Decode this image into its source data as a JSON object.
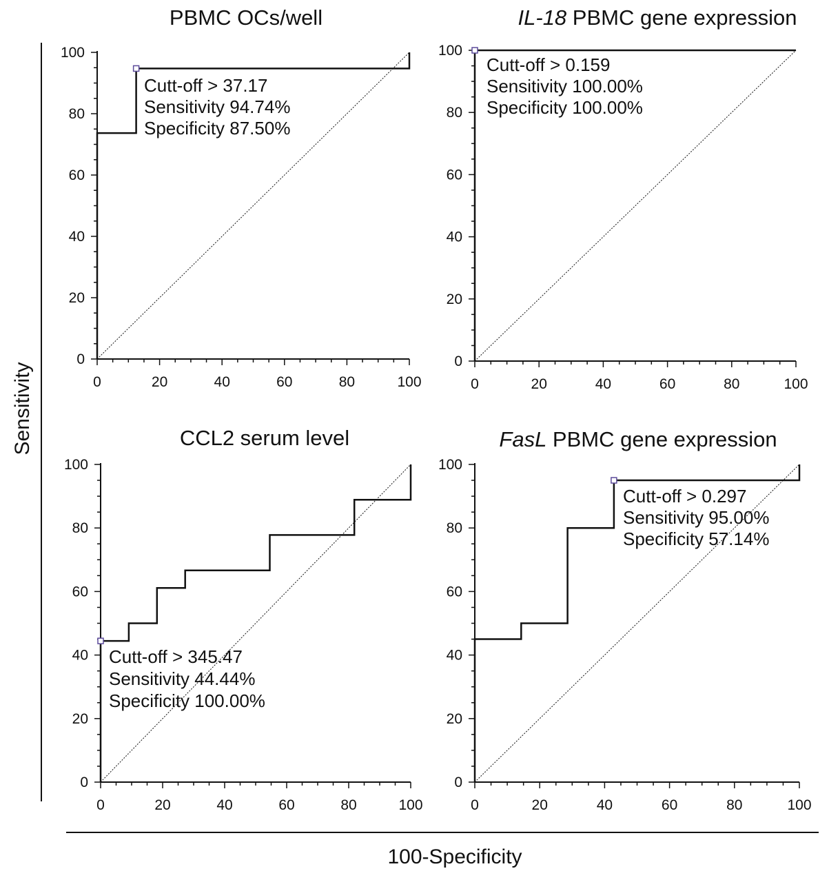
{
  "figure": {
    "ylabel": "Sensitivity",
    "xlabel": "100-Specificity"
  },
  "chart_data": [
    {
      "type": "line",
      "title": "PBMC OCs/well",
      "title_italic_prefix": "",
      "title_rest": "PBMC OCs/well",
      "xlim": [
        0,
        100
      ],
      "ylim": [
        0,
        100
      ],
      "x_ticks": [
        0,
        20,
        40,
        60,
        80,
        100
      ],
      "y_ticks": [
        0,
        20,
        40,
        60,
        80,
        100
      ],
      "x_minor_step": 5,
      "y_minor_step": 5,
      "grid": false,
      "series": [
        {
          "kind": "roc",
          "x": [
            0,
            0,
            12.5,
            12.5,
            100,
            100
          ],
          "y": [
            0,
            73.68,
            73.68,
            94.74,
            94.74,
            100
          ]
        },
        {
          "kind": "reference",
          "x": [
            0,
            100
          ],
          "y": [
            0,
            100
          ]
        }
      ],
      "cutoff_point": {
        "x": 12.5,
        "y": 94.74
      },
      "annotation": [
        "Cutt-off > 37.17",
        "Sensitivity 94.74%",
        "Specificity 87.50%"
      ]
    },
    {
      "type": "line",
      "title": "IL-18 PBMC gene expression",
      "title_italic_prefix": "IL-18",
      "title_rest": " PBMC gene expression",
      "xlim": [
        0,
        100
      ],
      "ylim": [
        0,
        100
      ],
      "x_ticks": [
        0,
        20,
        40,
        60,
        80,
        100
      ],
      "y_ticks": [
        0,
        20,
        40,
        60,
        80,
        100
      ],
      "x_minor_step": 5,
      "y_minor_step": 5,
      "grid": false,
      "series": [
        {
          "kind": "roc",
          "x": [
            0,
            0,
            100
          ],
          "y": [
            0,
            100,
            100
          ]
        },
        {
          "kind": "reference",
          "x": [
            0,
            100
          ],
          "y": [
            0,
            100
          ]
        }
      ],
      "cutoff_point": {
        "x": 0,
        "y": 100
      },
      "annotation": [
        "Cutt-off > 0.159",
        "Sensitivity 100.00%",
        "Specificity 100.00%"
      ]
    },
    {
      "type": "line",
      "title": "CCL2 serum level",
      "title_italic_prefix": "",
      "title_rest": "CCL2 serum level",
      "xlim": [
        0,
        100
      ],
      "ylim": [
        0,
        100
      ],
      "x_ticks": [
        0,
        20,
        40,
        60,
        80,
        100
      ],
      "y_ticks": [
        0,
        20,
        40,
        60,
        80,
        100
      ],
      "x_minor_step": 5,
      "y_minor_step": 5,
      "grid": false,
      "series": [
        {
          "kind": "roc",
          "x": [
            0,
            0,
            9.09,
            9.09,
            18.18,
            18.18,
            27.27,
            27.27,
            54.55,
            54.55,
            81.82,
            81.82,
            100,
            100
          ],
          "y": [
            0,
            44.44,
            44.44,
            50,
            50,
            61.11,
            61.11,
            66.67,
            66.67,
            77.78,
            77.78,
            88.89,
            88.89,
            100
          ]
        },
        {
          "kind": "reference",
          "x": [
            0,
            100
          ],
          "y": [
            0,
            100
          ]
        }
      ],
      "cutoff_point": {
        "x": 0,
        "y": 44.44
      },
      "annotation": [
        "Cutt-off > 345.47",
        "Sensitivity 44.44%",
        "Specificity 100.00%"
      ]
    },
    {
      "type": "line",
      "title": "FasL PBMC gene expression",
      "title_italic_prefix": "FasL",
      "title_rest": " PBMC gene expression",
      "xlim": [
        0,
        100
      ],
      "ylim": [
        0,
        100
      ],
      "x_ticks": [
        0,
        20,
        40,
        60,
        80,
        100
      ],
      "y_ticks": [
        0,
        20,
        40,
        60,
        80,
        100
      ],
      "x_minor_step": 5,
      "y_minor_step": 5,
      "grid": false,
      "series": [
        {
          "kind": "roc",
          "x": [
            0,
            0,
            14.29,
            14.29,
            28.57,
            28.57,
            42.86,
            42.86,
            100,
            100
          ],
          "y": [
            0,
            45,
            45,
            50,
            50,
            80,
            80,
            95,
            95,
            100
          ]
        },
        {
          "kind": "reference",
          "x": [
            0,
            100
          ],
          "y": [
            0,
            100
          ]
        }
      ],
      "cutoff_point": {
        "x": 42.86,
        "y": 95
      },
      "annotation": [
        "Cutt-off > 0.297",
        "Sensitivity 95.00%",
        "Specificity 57.14%"
      ]
    }
  ]
}
